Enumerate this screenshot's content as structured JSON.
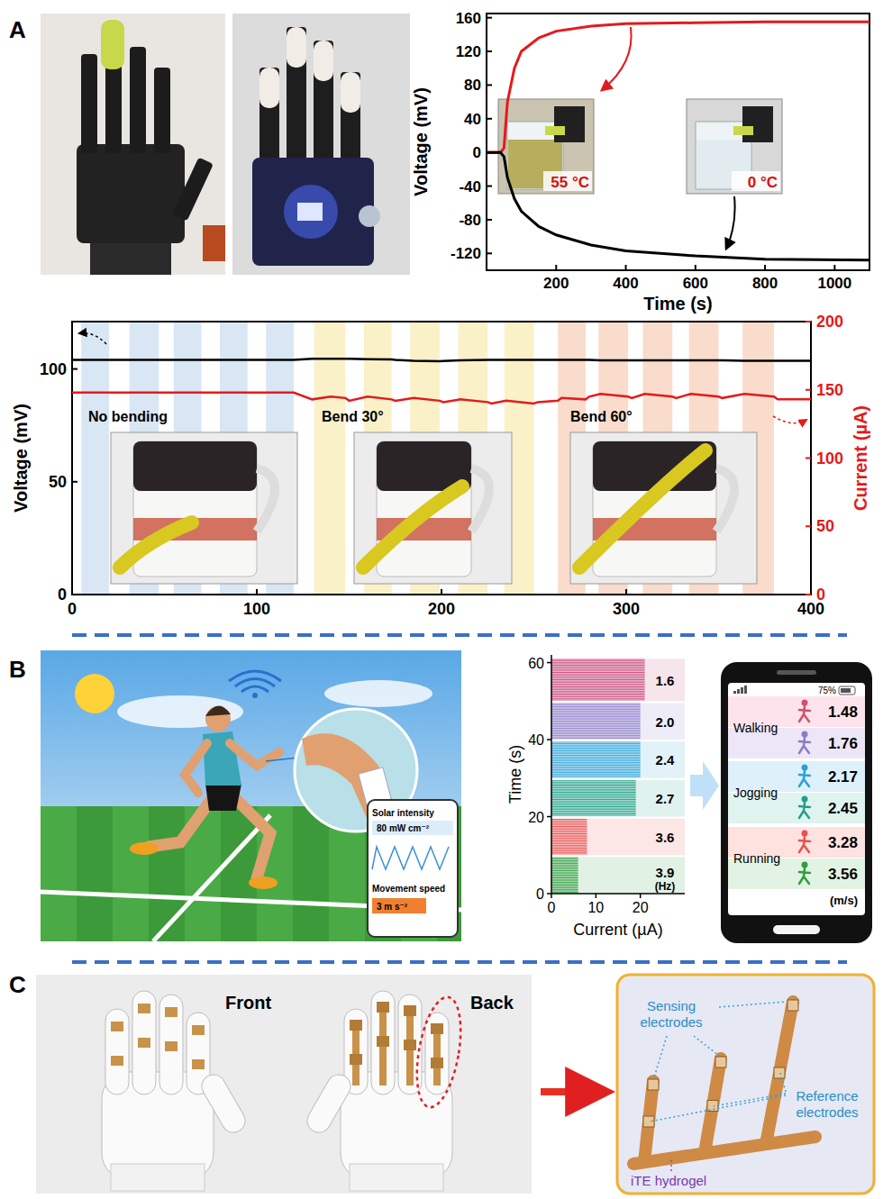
{
  "panels": [
    "A",
    "B",
    "C"
  ],
  "chart_data": [
    {
      "type": "line",
      "x_label": "Time (s)",
      "y_label": "Voltage (mV)",
      "xlim": [
        0,
        1100
      ],
      "xticks": [
        200,
        400,
        600,
        800,
        1000
      ],
      "ylim": [
        -140,
        165
      ],
      "yticks": [
        -120,
        -80,
        -40,
        0,
        40,
        80,
        120,
        160
      ],
      "x": [
        0,
        40,
        50,
        60,
        80,
        100,
        150,
        200,
        300,
        400,
        600,
        800,
        1100
      ],
      "series": [
        {
          "name": "55 °C",
          "color": "#e41a1c",
          "values": [
            0,
            0,
            5,
            60,
            100,
            120,
            136,
            144,
            150,
            153,
            154,
            155,
            155
          ]
        },
        {
          "name": "0 °C",
          "color": "#000000",
          "values": [
            0,
            0,
            -5,
            -30,
            -55,
            -70,
            -88,
            -98,
            -110,
            -117,
            -123,
            -127,
            -128
          ]
        }
      ]
    },
    {
      "type": "line",
      "y_label": "Voltage (mV)",
      "y2_label": "Current (µA)",
      "xlim": [
        0,
        400
      ],
      "xticks": [
        0,
        100,
        200,
        300,
        400
      ],
      "ylim": [
        0,
        121
      ],
      "yticks": [
        0,
        50,
        100
      ],
      "y2lim": [
        0,
        200
      ],
      "y2ticks": [
        0,
        50,
        100,
        150,
        200
      ],
      "x": [
        0,
        20,
        40,
        60,
        80,
        100,
        120,
        130,
        140,
        148,
        150,
        160,
        173,
        175,
        185,
        199,
        201,
        210,
        225,
        227,
        235,
        250,
        252,
        263,
        265,
        278,
        280,
        286,
        301,
        303,
        310,
        325,
        327,
        335,
        350,
        352,
        364,
        380,
        382,
        400
      ],
      "series": [
        {
          "color": "#000000",
          "values": [
            104,
            104,
            104,
            104,
            104,
            104,
            104,
            104.5,
            104.5,
            104.5,
            104.5,
            104.3,
            104.2,
            104,
            103.6,
            103.4,
            103.5,
            103.8,
            104,
            104,
            104,
            104,
            104,
            104,
            104,
            104,
            104,
            103.8,
            103.8,
            103.8,
            103.8,
            103.8,
            103.8,
            103.8,
            103.8,
            103.8,
            103.6,
            103.6,
            103.6,
            103.6
          ]
        },
        {
          "color": "#e41a1c",
          "axis": "y2",
          "values": [
            148,
            148,
            148,
            148,
            148,
            148,
            148,
            143,
            145,
            144,
            142,
            145,
            143,
            142,
            144,
            142,
            141,
            143,
            141,
            140,
            142,
            140,
            141,
            142,
            144,
            143,
            145,
            147,
            145,
            144,
            147,
            145,
            144,
            147,
            145,
            144,
            147,
            145,
            143,
            143
          ]
        }
      ],
      "bands": [
        {
          "label": "No bending",
          "color": "#d9e6f4",
          "ranges": [
            [
              5,
              20
            ],
            [
              31,
              47
            ],
            [
              55,
              70
            ],
            [
              80,
              95
            ],
            [
              105,
              120
            ]
          ]
        },
        {
          "label": "Bend 30°",
          "color": "#fbf1c8",
          "ranges": [
            [
              131,
              148
            ],
            [
              158,
              173
            ],
            [
              183,
              199
            ],
            [
              209,
              225
            ],
            [
              234,
              250
            ]
          ]
        },
        {
          "label": "Bend 60°",
          "color": "#f9dccb",
          "ranges": [
            [
              263,
              278
            ],
            [
              285,
              301
            ],
            [
              309,
              325
            ],
            [
              334,
              350
            ],
            [
              363,
              380
            ]
          ]
        }
      ]
    },
    {
      "type": "band",
      "x_label": "Current (µA)",
      "y_label": "Time (s)",
      "xlim": [
        0,
        30
      ],
      "xticks": [
        0,
        10,
        20
      ],
      "ylim": [
        0,
        62
      ],
      "yticks": [
        0,
        20,
        40,
        60
      ],
      "unit_label": "(Hz)",
      "bands": [
        {
          "label": "1.6",
          "color": "#c8487a",
          "start": 50,
          "end": 61,
          "value": 21
        },
        {
          "label": "2.0",
          "color": "#8a7cc8",
          "start": 40,
          "end": 49.5,
          "value": 20
        },
        {
          "label": "2.4",
          "color": "#2aa0d8",
          "start": 30,
          "end": 39.5,
          "value": 20
        },
        {
          "label": "2.7",
          "color": "#20a088",
          "start": 20,
          "end": 29.5,
          "value": 19
        },
        {
          "label": "3.6",
          "color": "#e85050",
          "start": 10,
          "end": 19.5,
          "value": 8
        },
        {
          "label": "3.9",
          "color": "#2e9e3e",
          "start": 0,
          "end": 9.5,
          "value": 6
        }
      ]
    }
  ],
  "scene": {
    "card": [
      "Solar intensity",
      "80 mW cm⁻²",
      "Movement speed",
      "3 m s⁻²"
    ]
  },
  "phone": {
    "battery": "75%",
    "unit": "(m/s)",
    "groups": [
      {
        "name": "Walking",
        "values": [
          1.48,
          1.76
        ]
      },
      {
        "name": "Jogging",
        "values": [
          2.17,
          2.45
        ]
      },
      {
        "name": "Running",
        "values": [
          3.28,
          3.56
        ]
      }
    ]
  },
  "photos": {
    "glove": [
      "Front",
      "Back"
    ]
  },
  "diagram": {
    "sensing": "Sensing electrodes",
    "reference": "Reference electrodes",
    "hydrogel": "iTE hydrogel"
  }
}
